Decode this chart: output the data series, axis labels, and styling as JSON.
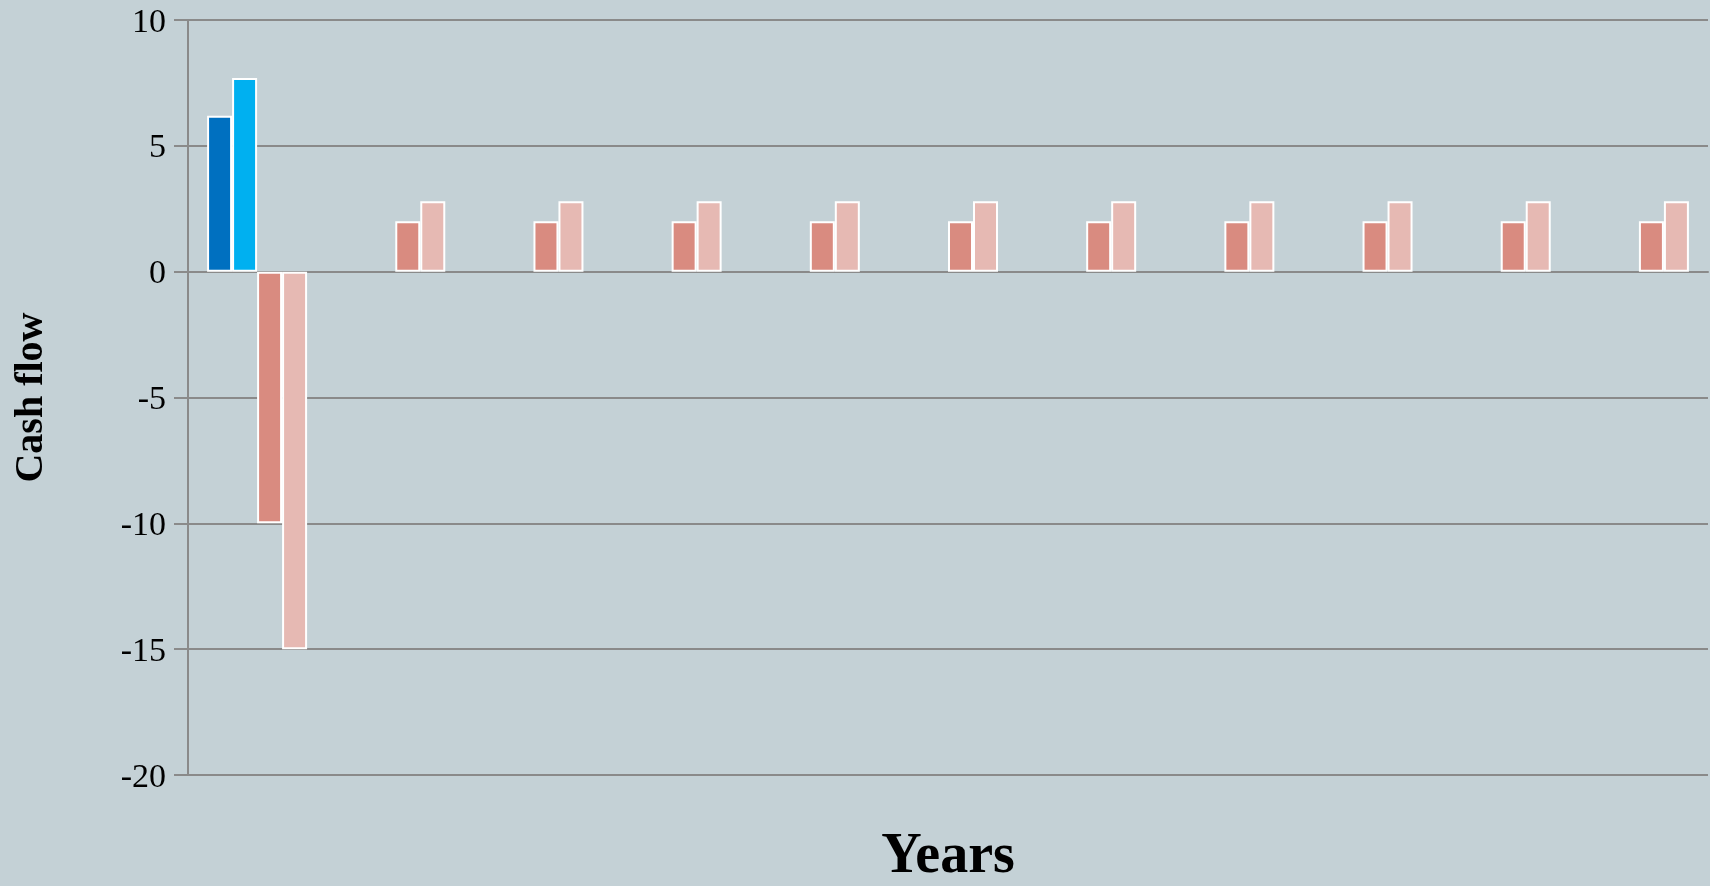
{
  "chart_data": {
    "type": "bar",
    "xlabel": "Years",
    "ylabel": "Cash flow",
    "categories": [
      null,
      null,
      null,
      null,
      null,
      null,
      null,
      null,
      null,
      null,
      null
    ],
    "series": [
      {
        "color": "#0070c0",
        "values": [
          6.2,
          null,
          null,
          null,
          null,
          null,
          null,
          null,
          null,
          null,
          null
        ]
      },
      {
        "color": "#00b0f0",
        "values": [
          7.7,
          null,
          null,
          null,
          null,
          null,
          null,
          null,
          null,
          null,
          null
        ]
      },
      {
        "color": "#d98b80",
        "values": [
          -10,
          2,
          2,
          2,
          2,
          2,
          2,
          2,
          2,
          2,
          2
        ]
      },
      {
        "color": "#e6b9b3",
        "values": [
          -15,
          2.8,
          2.8,
          2.8,
          2.8,
          2.8,
          2.8,
          2.8,
          2.8,
          2.8,
          2.8
        ]
      }
    ],
    "ylim": [
      -20,
      10
    ],
    "yticks": [
      -20,
      -15,
      -10,
      -5,
      0,
      5,
      10
    ],
    "grid": "y"
  }
}
